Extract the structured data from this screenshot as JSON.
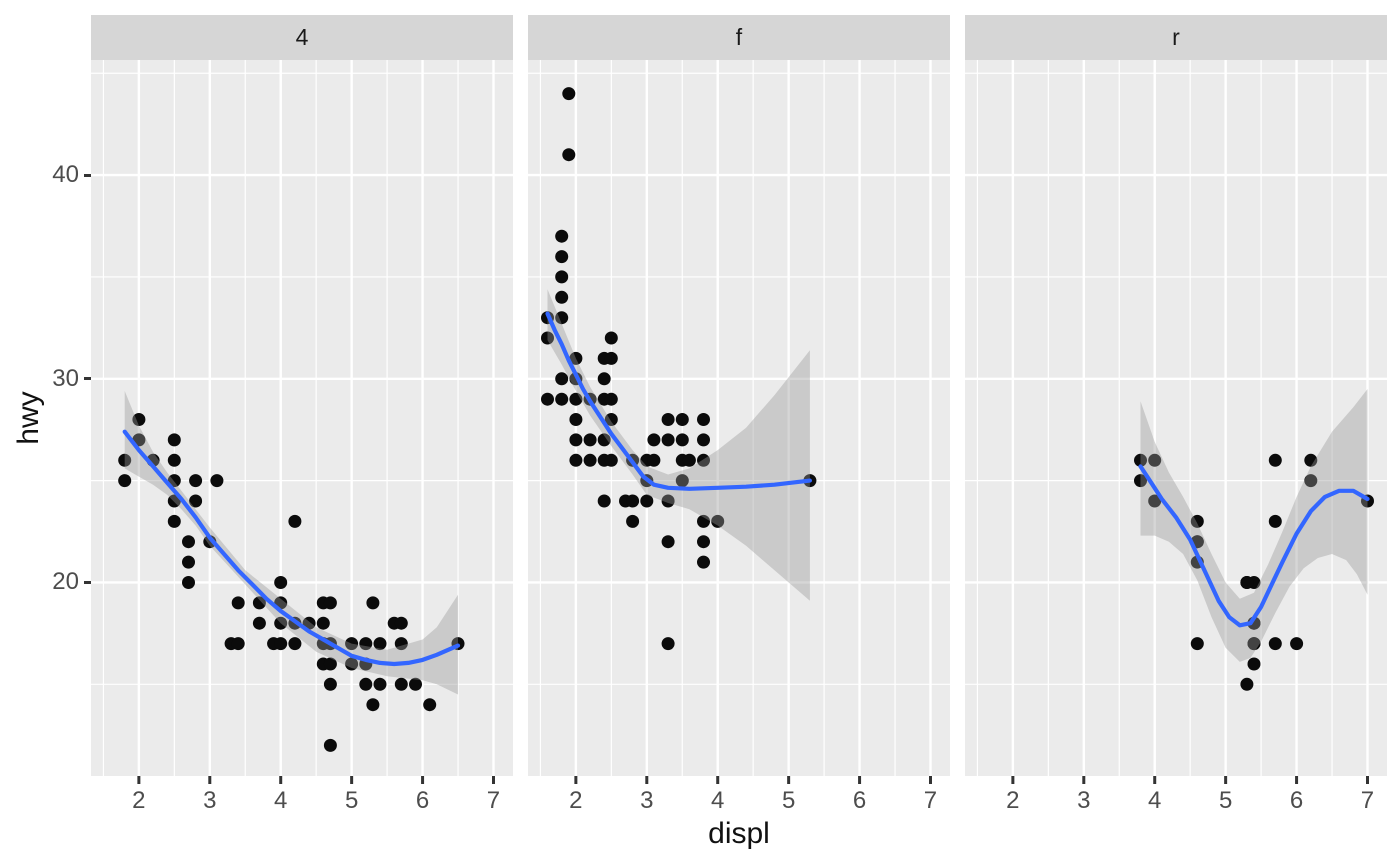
{
  "chart_data": {
    "type": "scatter",
    "title": "",
    "xlabel": "displ",
    "ylabel": "hwy",
    "x_ticks": [
      2,
      3,
      4,
      5,
      6,
      7
    ],
    "y_ticks": [
      20,
      30,
      40
    ],
    "x_minor": [
      1.5,
      2.5,
      3.5,
      4.5,
      5.5,
      6.5
    ],
    "y_minor": [
      15,
      25,
      35,
      45
    ],
    "xlim": [
      1.325,
      7.275
    ],
    "ylim": [
      10.5,
      45.65
    ],
    "grid": true,
    "legend_position": "none",
    "smooth_method": "loess",
    "colors": {
      "panel_bg": "#EBEBEB",
      "strip_bg": "#D6D6D6",
      "grid": "#FFFFFF",
      "point": "#0B0B0B",
      "smooth_line": "#3366FF",
      "ribbon": "#999999",
      "axis_text": "#4D4D4D",
      "axis_title": "#111111",
      "strip_text": "#1A1A1A",
      "tick_mark": "#333333"
    },
    "ribbon_opacity": 0.4,
    "facets": [
      {
        "label": "4",
        "points": [
          [
            2.0,
            28
          ],
          [
            2.0,
            27
          ],
          [
            2.5,
            27
          ],
          [
            1.8,
            26
          ],
          [
            2.2,
            26
          ],
          [
            2.5,
            26
          ],
          [
            1.8,
            25
          ],
          [
            2.5,
            25
          ],
          [
            2.8,
            25
          ],
          [
            3.1,
            25
          ],
          [
            2.5,
            24
          ],
          [
            2.8,
            24
          ],
          [
            2.5,
            23
          ],
          [
            4.2,
            23
          ],
          [
            2.7,
            22
          ],
          [
            3.0,
            22
          ],
          [
            2.7,
            21
          ],
          [
            2.7,
            20
          ],
          [
            4.0,
            20
          ],
          [
            3.4,
            19
          ],
          [
            3.7,
            19
          ],
          [
            4.0,
            19
          ],
          [
            4.6,
            19
          ],
          [
            4.7,
            19
          ],
          [
            5.3,
            19
          ],
          [
            3.7,
            18
          ],
          [
            4.0,
            18
          ],
          [
            4.2,
            18
          ],
          [
            4.4,
            18
          ],
          [
            4.6,
            18
          ],
          [
            5.6,
            18
          ],
          [
            5.7,
            18
          ],
          [
            3.3,
            17
          ],
          [
            3.4,
            17
          ],
          [
            3.9,
            17
          ],
          [
            4.0,
            17
          ],
          [
            4.2,
            17
          ],
          [
            4.6,
            17
          ],
          [
            4.7,
            17
          ],
          [
            5.0,
            17
          ],
          [
            5.2,
            17
          ],
          [
            5.4,
            17
          ],
          [
            5.7,
            17
          ],
          [
            6.5,
            17
          ],
          [
            4.6,
            16
          ],
          [
            4.7,
            16
          ],
          [
            5.0,
            16
          ],
          [
            5.2,
            16
          ],
          [
            4.7,
            15
          ],
          [
            5.2,
            15
          ],
          [
            5.4,
            15
          ],
          [
            5.7,
            15
          ],
          [
            5.9,
            15
          ],
          [
            5.3,
            14
          ],
          [
            6.1,
            14
          ],
          [
            4.7,
            12
          ]
        ],
        "smooth": [
          [
            1.8,
            27.4
          ],
          [
            2.0,
            26.5
          ],
          [
            2.2,
            25.7
          ],
          [
            2.4,
            24.9
          ],
          [
            2.6,
            24.1
          ],
          [
            2.8,
            23.2
          ],
          [
            3.0,
            22.2
          ],
          [
            3.2,
            21.4
          ],
          [
            3.4,
            20.6
          ],
          [
            3.6,
            19.9
          ],
          [
            3.8,
            19.2
          ],
          [
            4.0,
            18.6
          ],
          [
            4.2,
            18.1
          ],
          [
            4.4,
            17.6
          ],
          [
            4.6,
            17.2
          ],
          [
            4.8,
            16.8
          ],
          [
            5.0,
            16.4
          ],
          [
            5.2,
            16.2
          ],
          [
            5.4,
            16.05
          ],
          [
            5.6,
            16.0
          ],
          [
            5.8,
            16.05
          ],
          [
            6.0,
            16.2
          ],
          [
            6.2,
            16.45
          ],
          [
            6.5,
            16.9
          ]
        ],
        "ribbon_upper": [
          [
            1.8,
            29.4
          ],
          [
            2.0,
            27.7
          ],
          [
            2.2,
            26.4
          ],
          [
            2.4,
            25.4
          ],
          [
            2.6,
            24.5
          ],
          [
            2.8,
            23.6
          ],
          [
            3.0,
            22.7
          ],
          [
            3.5,
            20.6
          ],
          [
            4.0,
            19.2
          ],
          [
            4.5,
            17.8
          ],
          [
            5.0,
            17.0
          ],
          [
            5.5,
            16.7
          ],
          [
            6.0,
            17.2
          ],
          [
            6.2,
            17.8
          ],
          [
            6.5,
            19.4
          ]
        ],
        "ribbon_lower": [
          [
            1.8,
            25.6
          ],
          [
            2.0,
            25.2
          ],
          [
            2.2,
            24.8
          ],
          [
            2.4,
            24.3
          ],
          [
            2.6,
            23.6
          ],
          [
            2.8,
            22.8
          ],
          [
            3.0,
            21.8
          ],
          [
            3.5,
            19.9
          ],
          [
            4.0,
            18.0
          ],
          [
            4.5,
            16.6
          ],
          [
            5.0,
            15.8
          ],
          [
            5.5,
            15.4
          ],
          [
            6.0,
            15.2
          ],
          [
            6.2,
            15.0
          ],
          [
            6.5,
            14.5
          ]
        ]
      },
      {
        "label": "f",
        "points": [
          [
            1.9,
            44
          ],
          [
            1.9,
            41
          ],
          [
            1.8,
            37
          ],
          [
            1.8,
            36
          ],
          [
            1.8,
            35
          ],
          [
            1.8,
            34
          ],
          [
            1.6,
            33
          ],
          [
            1.8,
            33
          ],
          [
            1.6,
            32
          ],
          [
            2.5,
            32
          ],
          [
            2.0,
            31
          ],
          [
            2.4,
            31
          ],
          [
            2.5,
            31
          ],
          [
            1.8,
            30
          ],
          [
            2.0,
            30
          ],
          [
            2.4,
            30
          ],
          [
            1.6,
            29
          ],
          [
            1.8,
            29
          ],
          [
            2.0,
            29
          ],
          [
            2.2,
            29
          ],
          [
            2.4,
            29
          ],
          [
            2.5,
            29
          ],
          [
            2.0,
            28
          ],
          [
            2.5,
            28
          ],
          [
            3.3,
            28
          ],
          [
            3.5,
            28
          ],
          [
            3.8,
            28
          ],
          [
            2.0,
            27
          ],
          [
            2.2,
            27
          ],
          [
            2.4,
            27
          ],
          [
            3.1,
            27
          ],
          [
            3.3,
            27
          ],
          [
            3.5,
            27
          ],
          [
            3.8,
            27
          ],
          [
            2.0,
            26
          ],
          [
            2.2,
            26
          ],
          [
            2.4,
            26
          ],
          [
            2.5,
            26
          ],
          [
            2.8,
            26
          ],
          [
            3.0,
            26
          ],
          [
            3.1,
            26
          ],
          [
            3.5,
            26
          ],
          [
            3.6,
            26
          ],
          [
            3.8,
            26
          ],
          [
            3.0,
            25
          ],
          [
            3.5,
            25
          ],
          [
            5.3,
            25
          ],
          [
            2.4,
            24
          ],
          [
            2.7,
            24
          ],
          [
            2.8,
            24
          ],
          [
            3.0,
            24
          ],
          [
            3.3,
            24
          ],
          [
            2.8,
            23
          ],
          [
            3.8,
            23
          ],
          [
            4.0,
            23
          ],
          [
            3.3,
            22
          ],
          [
            3.8,
            22
          ],
          [
            3.8,
            21
          ],
          [
            3.3,
            17
          ]
        ],
        "smooth": [
          [
            1.6,
            33.2
          ],
          [
            1.7,
            32.4
          ],
          [
            1.8,
            31.7
          ],
          [
            1.9,
            30.9
          ],
          [
            2.0,
            30.2
          ],
          [
            2.1,
            29.5
          ],
          [
            2.2,
            28.9
          ],
          [
            2.35,
            28.1
          ],
          [
            2.5,
            27.3
          ],
          [
            2.65,
            26.6
          ],
          [
            2.8,
            25.9
          ],
          [
            2.95,
            25.2
          ],
          [
            3.1,
            24.8
          ],
          [
            3.3,
            24.65
          ],
          [
            3.6,
            24.6
          ],
          [
            4.0,
            24.65
          ],
          [
            4.4,
            24.7
          ],
          [
            4.8,
            24.8
          ],
          [
            5.3,
            25.0
          ]
        ],
        "ribbon_upper": [
          [
            1.6,
            34.4
          ],
          [
            1.8,
            32.7
          ],
          [
            2.0,
            31.0
          ],
          [
            2.2,
            29.6
          ],
          [
            2.5,
            27.9
          ],
          [
            2.8,
            26.5
          ],
          [
            3.0,
            25.7
          ],
          [
            3.3,
            25.3
          ],
          [
            3.6,
            25.6
          ],
          [
            4.0,
            26.5
          ],
          [
            4.4,
            27.6
          ],
          [
            4.8,
            29.2
          ],
          [
            5.3,
            31.4
          ]
        ],
        "ribbon_lower": [
          [
            1.6,
            31.9
          ],
          [
            1.8,
            30.7
          ],
          [
            2.0,
            29.4
          ],
          [
            2.2,
            28.2
          ],
          [
            2.5,
            26.7
          ],
          [
            2.8,
            25.3
          ],
          [
            3.0,
            24.3
          ],
          [
            3.3,
            23.9
          ],
          [
            3.6,
            23.6
          ],
          [
            4.0,
            22.8
          ],
          [
            4.4,
            21.8
          ],
          [
            4.8,
            20.6
          ],
          [
            5.3,
            19.1
          ]
        ]
      },
      {
        "label": "r",
        "points": [
          [
            3.8,
            26
          ],
          [
            3.8,
            25
          ],
          [
            4.0,
            26
          ],
          [
            4.0,
            24
          ],
          [
            4.6,
            21
          ],
          [
            4.6,
            22
          ],
          [
            4.6,
            23
          ],
          [
            4.6,
            22
          ],
          [
            5.4,
            20
          ],
          [
            4.6,
            17
          ],
          [
            5.4,
            17
          ],
          [
            5.4,
            18
          ],
          [
            5.4,
            17
          ],
          [
            5.4,
            16
          ],
          [
            5.4,
            18
          ],
          [
            5.3,
            20
          ],
          [
            5.3,
            15
          ],
          [
            5.3,
            20
          ],
          [
            5.7,
            17
          ],
          [
            6.0,
            17
          ],
          [
            5.7,
            26
          ],
          [
            5.7,
            23
          ],
          [
            6.2,
            26
          ],
          [
            6.2,
            25
          ],
          [
            7.0,
            24
          ]
        ],
        "smooth": [
          [
            3.8,
            25.7
          ],
          [
            3.95,
            24.9
          ],
          [
            4.1,
            24.1
          ],
          [
            4.3,
            23.2
          ],
          [
            4.5,
            22.1
          ],
          [
            4.7,
            20.6
          ],
          [
            4.9,
            19.1
          ],
          [
            5.05,
            18.3
          ],
          [
            5.2,
            17.9
          ],
          [
            5.35,
            18.0
          ],
          [
            5.5,
            18.8
          ],
          [
            5.65,
            19.9
          ],
          [
            5.8,
            21.0
          ],
          [
            6.0,
            22.4
          ],
          [
            6.2,
            23.5
          ],
          [
            6.4,
            24.2
          ],
          [
            6.6,
            24.5
          ],
          [
            6.8,
            24.5
          ],
          [
            7.0,
            24.1
          ]
        ],
        "ribbon_upper": [
          [
            3.8,
            28.9
          ],
          [
            4.0,
            26.9
          ],
          [
            4.2,
            25.4
          ],
          [
            4.4,
            24.2
          ],
          [
            4.6,
            22.9
          ],
          [
            4.8,
            21.4
          ],
          [
            5.0,
            20.0
          ],
          [
            5.2,
            19.2
          ],
          [
            5.4,
            19.5
          ],
          [
            5.6,
            20.9
          ],
          [
            5.8,
            22.5
          ],
          [
            6.0,
            24.2
          ],
          [
            6.2,
            25.7
          ],
          [
            6.5,
            27.4
          ],
          [
            6.8,
            28.6
          ],
          [
            7.0,
            29.5
          ]
        ],
        "ribbon_lower": [
          [
            3.8,
            22.3
          ],
          [
            4.0,
            22.3
          ],
          [
            4.2,
            22.0
          ],
          [
            4.4,
            21.4
          ],
          [
            4.6,
            20.1
          ],
          [
            4.8,
            18.3
          ],
          [
            5.0,
            16.8
          ],
          [
            5.2,
            16.1
          ],
          [
            5.35,
            16.3
          ],
          [
            5.5,
            17.1
          ],
          [
            5.7,
            18.5
          ],
          [
            5.9,
            19.8
          ],
          [
            6.1,
            20.7
          ],
          [
            6.3,
            21.2
          ],
          [
            6.5,
            21.4
          ],
          [
            6.7,
            21.1
          ],
          [
            6.85,
            20.4
          ],
          [
            7.0,
            19.4
          ]
        ]
      }
    ]
  }
}
